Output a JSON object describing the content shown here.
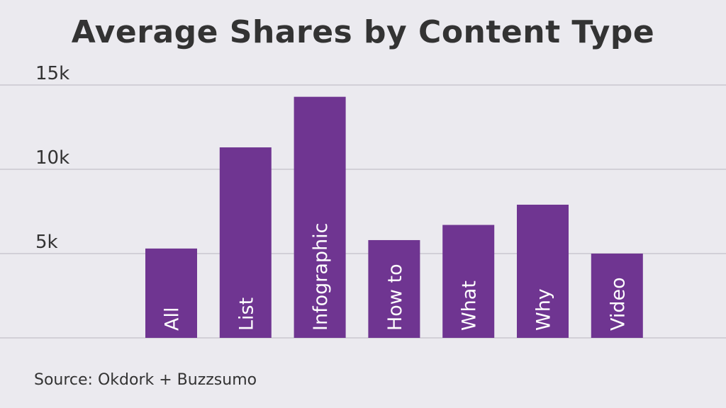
{
  "chart_data": {
    "type": "bar",
    "title": "Average Shares by Content Type",
    "categories": [
      "All",
      "List",
      "Infographic",
      "How to",
      "What",
      "Why",
      "Video"
    ],
    "values": [
      5300,
      11300,
      14300,
      5800,
      6700,
      7900,
      5000
    ],
    "xlabel": "",
    "ylabel": "",
    "ylim": [
      0,
      15000
    ],
    "yticks": [
      {
        "value": 5000,
        "label": "5k"
      },
      {
        "value": 10000,
        "label": "10k"
      },
      {
        "value": 15000,
        "label": "15k"
      }
    ],
    "grid": true,
    "legend": "none"
  },
  "source": "Source: Okdork + Buzzsumo",
  "colors": {
    "bar": "#6f3591",
    "bar_label": "#ffffff",
    "gridline": "#c9c8cf",
    "text": "#333333",
    "background": "#ebeaef"
  }
}
